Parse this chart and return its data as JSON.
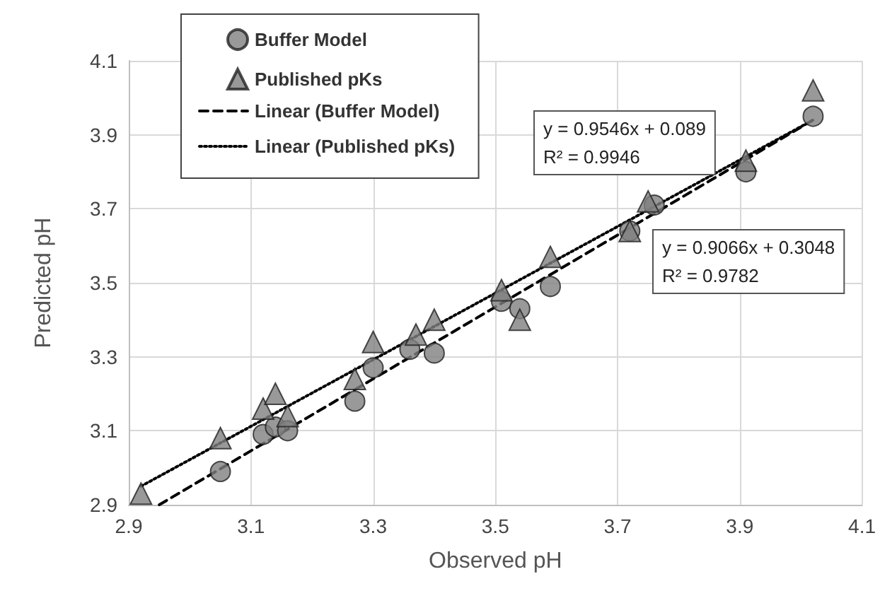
{
  "chart_data": {
    "type": "scatter",
    "xlabel": "Observed pH",
    "ylabel": "Predicted pH",
    "xlim": [
      2.9,
      4.1
    ],
    "xticks": [
      2.9,
      3.1,
      3.3,
      3.5,
      3.7,
      3.9,
      4.1
    ],
    "ylim": [
      2.9,
      4.1
    ],
    "yticks": [
      2.9,
      3.1,
      3.3,
      3.5,
      3.7,
      3.9,
      4.1
    ],
    "grid": true,
    "legend": "top left",
    "annotations": [
      "y = 0.9546x + 0.089\nR² = 0.9946",
      "y = 0.9066x + 0.3048\nR² = 0.9782"
    ],
    "series": [
      {
        "name": "Buffer Model",
        "type": "scatter",
        "marker": "circle",
        "color": "#7f7f7f",
        "x": [
          3.05,
          3.12,
          3.14,
          3.16,
          3.27,
          3.3,
          3.36,
          3.4,
          3.51,
          3.54,
          3.59,
          3.72,
          3.76,
          3.91,
          4.02
        ],
        "values": [
          2.99,
          3.09,
          3.11,
          3.1,
          3.18,
          3.27,
          3.32,
          3.31,
          3.45,
          3.43,
          3.49,
          3.64,
          3.71,
          3.8,
          3.95
        ]
      },
      {
        "name": "Published pKs",
        "type": "scatter",
        "marker": "triangle",
        "color": "#7f7f7f",
        "x": [
          2.92,
          3.05,
          3.12,
          3.14,
          3.16,
          3.27,
          3.3,
          3.37,
          3.4,
          3.51,
          3.54,
          3.59,
          3.72,
          3.75,
          3.91,
          4.02
        ],
        "values": [
          2.93,
          3.08,
          3.16,
          3.2,
          3.14,
          3.24,
          3.34,
          3.36,
          3.4,
          3.48,
          3.4,
          3.57,
          3.64,
          3.72,
          3.83,
          4.02
        ]
      },
      {
        "name": "Linear (Buffer Model)",
        "type": "line",
        "marker": "none",
        "line_style": "dashed",
        "color": "#000000",
        "x": [
          2.95,
          4.02
        ],
        "values": [
          2.9,
          3.94
        ]
      },
      {
        "name": "Linear (Published pKs)",
        "type": "line",
        "marker": "none",
        "line_style": "dotted",
        "color": "#000000",
        "x": [
          2.92,
          4.02
        ],
        "values": [
          2.95,
          3.94
        ]
      }
    ]
  }
}
